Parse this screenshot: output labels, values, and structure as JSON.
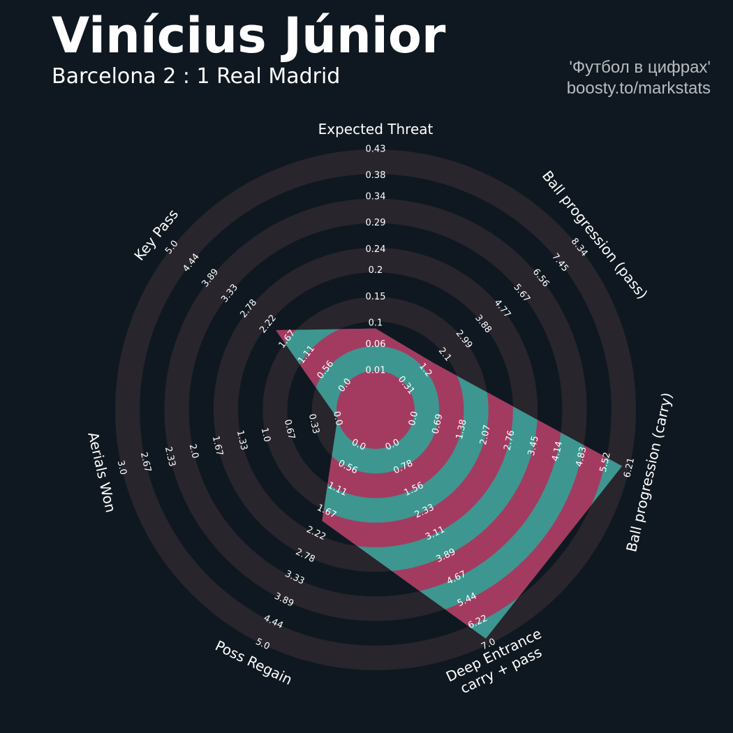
{
  "title": "Vinícius Júnior",
  "subtitle": "Barcelona 2 : 1 Real Madrid",
  "credits": [
    "'Футбол в цифрах'",
    "boosty.to/markstats"
  ],
  "chart_data": {
    "type": "radar",
    "params": [
      "Expected Threat",
      "Ball progression (pass)",
      "Ball progression (carry)",
      "Deep Entrance\ncarry + pass",
      "Poss Regain",
      "Aerials Won",
      "Key Pass"
    ],
    "values": [
      0.09,
      1.6,
      6.0,
      6.8,
      1.9,
      0,
      2.0
    ],
    "ticks": [
      [
        0.01,
        0.06,
        0.1,
        0.15,
        0.2,
        0.24,
        0.29,
        0.34,
        0.38,
        0.43
      ],
      [
        0.31,
        1.2,
        2.1,
        2.99,
        3.88,
        4.77,
        5.67,
        6.56,
        7.45,
        8.34
      ],
      [
        {
          "value": 0,
          "label": "0.0"
        },
        0.69,
        1.38,
        2.07,
        2.76,
        3.45,
        4.14,
        4.83,
        5.52,
        6.21
      ],
      [
        {
          "value": 0,
          "label": "0.0"
        },
        0.78,
        1.56,
        2.33,
        3.11,
        3.89,
        4.67,
        5.44,
        6.22,
        {
          "value": 7,
          "label": "7.0"
        }
      ],
      [
        {
          "value": 0,
          "label": "0.0"
        },
        0.56,
        1.11,
        1.67,
        2.22,
        2.78,
        3.33,
        3.89,
        4.44,
        {
          "value": 5,
          "label": "5.0"
        }
      ],
      [
        {
          "value": 0,
          "label": "0.0"
        },
        0.33,
        0.67,
        {
          "value": 1,
          "label": "1.0"
        },
        1.33,
        1.67,
        {
          "value": 2,
          "label": "2.0"
        },
        2.33,
        2.67,
        {
          "value": 3,
          "label": "3.0"
        }
      ],
      [
        {
          "value": 0,
          "label": "0.0"
        },
        0.56,
        1.11,
        1.67,
        2.22,
        2.78,
        3.33,
        3.89,
        4.44,
        {
          "value": 5,
          "label": "5.0"
        }
      ]
    ],
    "ring_color": "#28252c",
    "inner_color": "#3e9690",
    "alt_color": "#a33b60"
  }
}
